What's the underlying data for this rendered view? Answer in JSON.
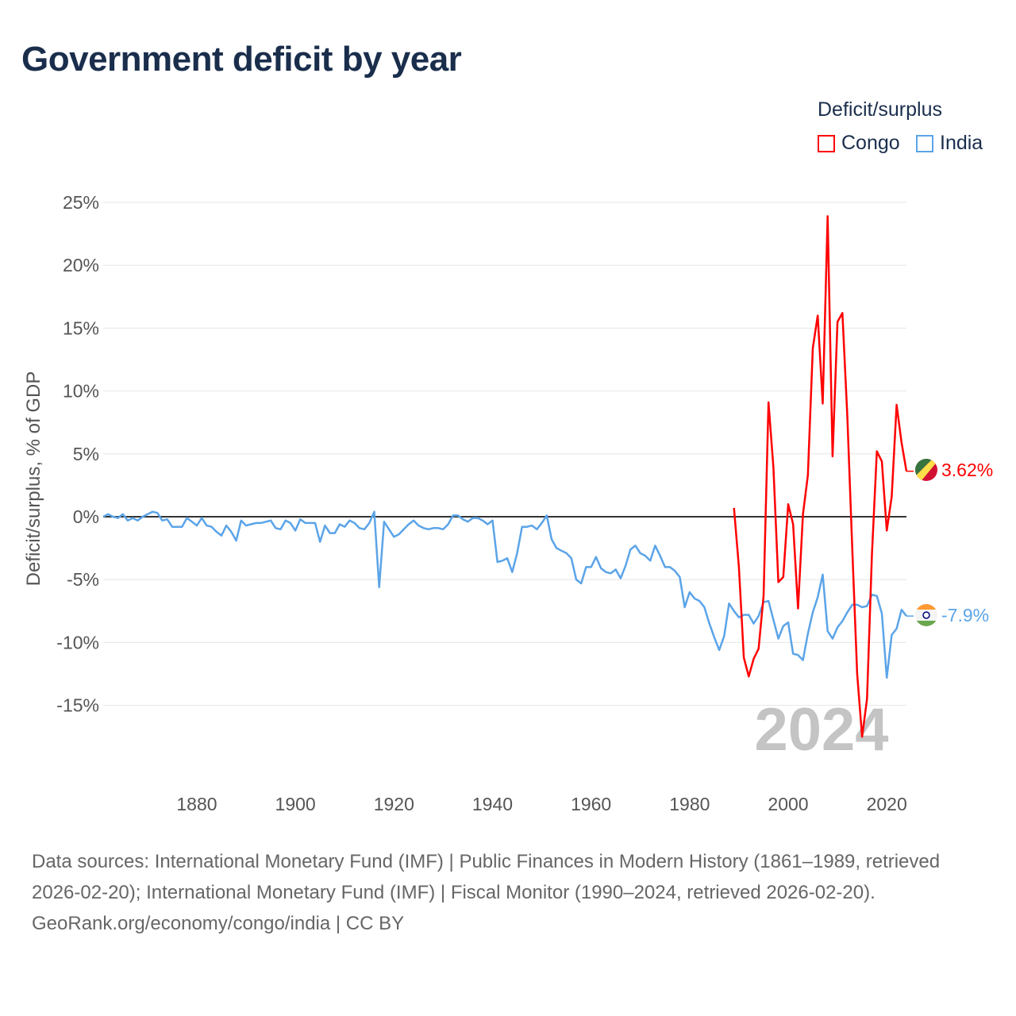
{
  "title": "Government deficit by year",
  "legend": {
    "title": "Deficit/surplus",
    "items": [
      {
        "label": "Congo",
        "color": "#ff0000"
      },
      {
        "label": "India",
        "color": "#5ba4e8"
      }
    ]
  },
  "watermark_year": "2024",
  "footer": {
    "sources": "Data sources: International Monetary Fund (IMF) | Public Finances in Modern History (1861–1989, retrieved 2026-02-20); International Monetary Fund (IMF) | Fiscal Monitor (1990–2024, retrieved 2026-02-20).",
    "credit": "GeoRank.org/economy/congo/india | CC BY"
  },
  "chart_data": {
    "type": "line",
    "title": "Government deficit by year",
    "xlabel": "",
    "ylabel": "Deficit/surplus, % of GDP",
    "xlim": [
      1861,
      2024
    ],
    "ylim": [
      -20,
      25
    ],
    "x_ticks": [
      1880,
      1900,
      1920,
      1940,
      1960,
      1980,
      2000,
      2020
    ],
    "y_ticks": [
      -15,
      -10,
      -5,
      0,
      5,
      10,
      15,
      20,
      25
    ],
    "y_tick_labels": [
      "-15%",
      "-10%",
      "-5%",
      "0%",
      "5%",
      "10%",
      "15%",
      "20%",
      "25%"
    ],
    "x_tick_labels": [
      "1880",
      "1900",
      "1920",
      "1940",
      "1960",
      "1980",
      "2000",
      "2020"
    ],
    "grid": true,
    "legend_position": "top-right",
    "series": [
      {
        "name": "Congo",
        "color": "#ff0000",
        "start_year": 1989,
        "end_label": "3.62%",
        "values": [
          0.7,
          -4,
          -11.2,
          -12.7,
          -11.3,
          -10.5,
          -6.3,
          9.1,
          3.9,
          -5.2,
          -4.8,
          1.0,
          -0.6,
          -7.3,
          0.2,
          3.3,
          13.4,
          16,
          9.0,
          23.9,
          4.8,
          15.5,
          16.2,
          8,
          -2.5,
          -12.5,
          -17.5,
          -14.5,
          -3,
          5.2,
          4.4,
          -1.1,
          1.6,
          8.9,
          5.9,
          3.62
        ]
      },
      {
        "name": "India",
        "color": "#5ba4e8",
        "start_year": 1861,
        "end_label": "-7.9%",
        "values": [
          0,
          0.2,
          0,
          -0.1,
          0.2,
          -0.3,
          -0.1,
          -0.3,
          0,
          0.2,
          0.4,
          0.3,
          -0.3,
          -0.2,
          -0.8,
          -0.8,
          -0.8,
          -0.1,
          -0.4,
          -0.7,
          -0.1,
          -0.7,
          -0.8,
          -1.2,
          -1.5,
          -0.7,
          -1.2,
          -1.9,
          -0.3,
          -0.7,
          -0.6,
          -0.5,
          -0.5,
          -0.4,
          -0.3,
          -0.9,
          -1.0,
          -0.3,
          -0.5,
          -1.1,
          -0.2,
          -0.5,
          -0.5,
          -0.5,
          -2.0,
          -0.7,
          -1.3,
          -1.3,
          -0.6,
          -0.8,
          -0.3,
          -0.5,
          -0.9,
          -1.0,
          -0.5,
          0.4,
          -5.6,
          -0.4,
          -1.0,
          -1.6,
          -1.4,
          -1.0,
          -0.6,
          -0.3,
          -0.7,
          -0.9,
          -1.0,
          -0.9,
          -0.9,
          -1.0,
          -0.6,
          0.1,
          0.1,
          -0.2,
          -0.4,
          -0.1,
          -0.1,
          -0.3,
          -0.6,
          -0.3,
          -3.6,
          -3.5,
          -3.3,
          -4.4,
          -2.9,
          -0.8,
          -0.8,
          -0.7,
          -1.0,
          -0.5,
          0.1,
          -1.8,
          -2.5,
          -2.7,
          -2.9,
          -3.3,
          -5.0,
          -5.3,
          -4.0,
          -4.0,
          -3.2,
          -4.1,
          -4.4,
          -4.5,
          -4.2,
          -4.9,
          -3.9,
          -2.6,
          -2.3,
          -2.9,
          -3.1,
          -3.5,
          -2.3,
          -3.1,
          -4.0,
          -4.0,
          -4.3,
          -4.8,
          -7.2,
          -6.0,
          -6.5,
          -6.7,
          -7.2,
          -8.5,
          -9.6,
          -10.6,
          -9.5,
          -6.9,
          -7.5,
          -8.0,
          -7.8,
          -7.8,
          -8.5,
          -7.9,
          -6.8,
          -6.7,
          -8.2,
          -9.7,
          -8.7,
          -8.4,
          -10.9,
          -11.0,
          -11.4,
          -9.3,
          -7.6,
          -6.4,
          -4.6,
          -9.1,
          -9.7,
          -8.8,
          -8.3,
          -7.6,
          -7.0,
          -7.0,
          -7.2,
          -7.1,
          -6.2,
          -6.3,
          -7.7,
          -12.8,
          -9.4,
          -8.9,
          -7.4,
          -7.9
        ]
      }
    ]
  }
}
